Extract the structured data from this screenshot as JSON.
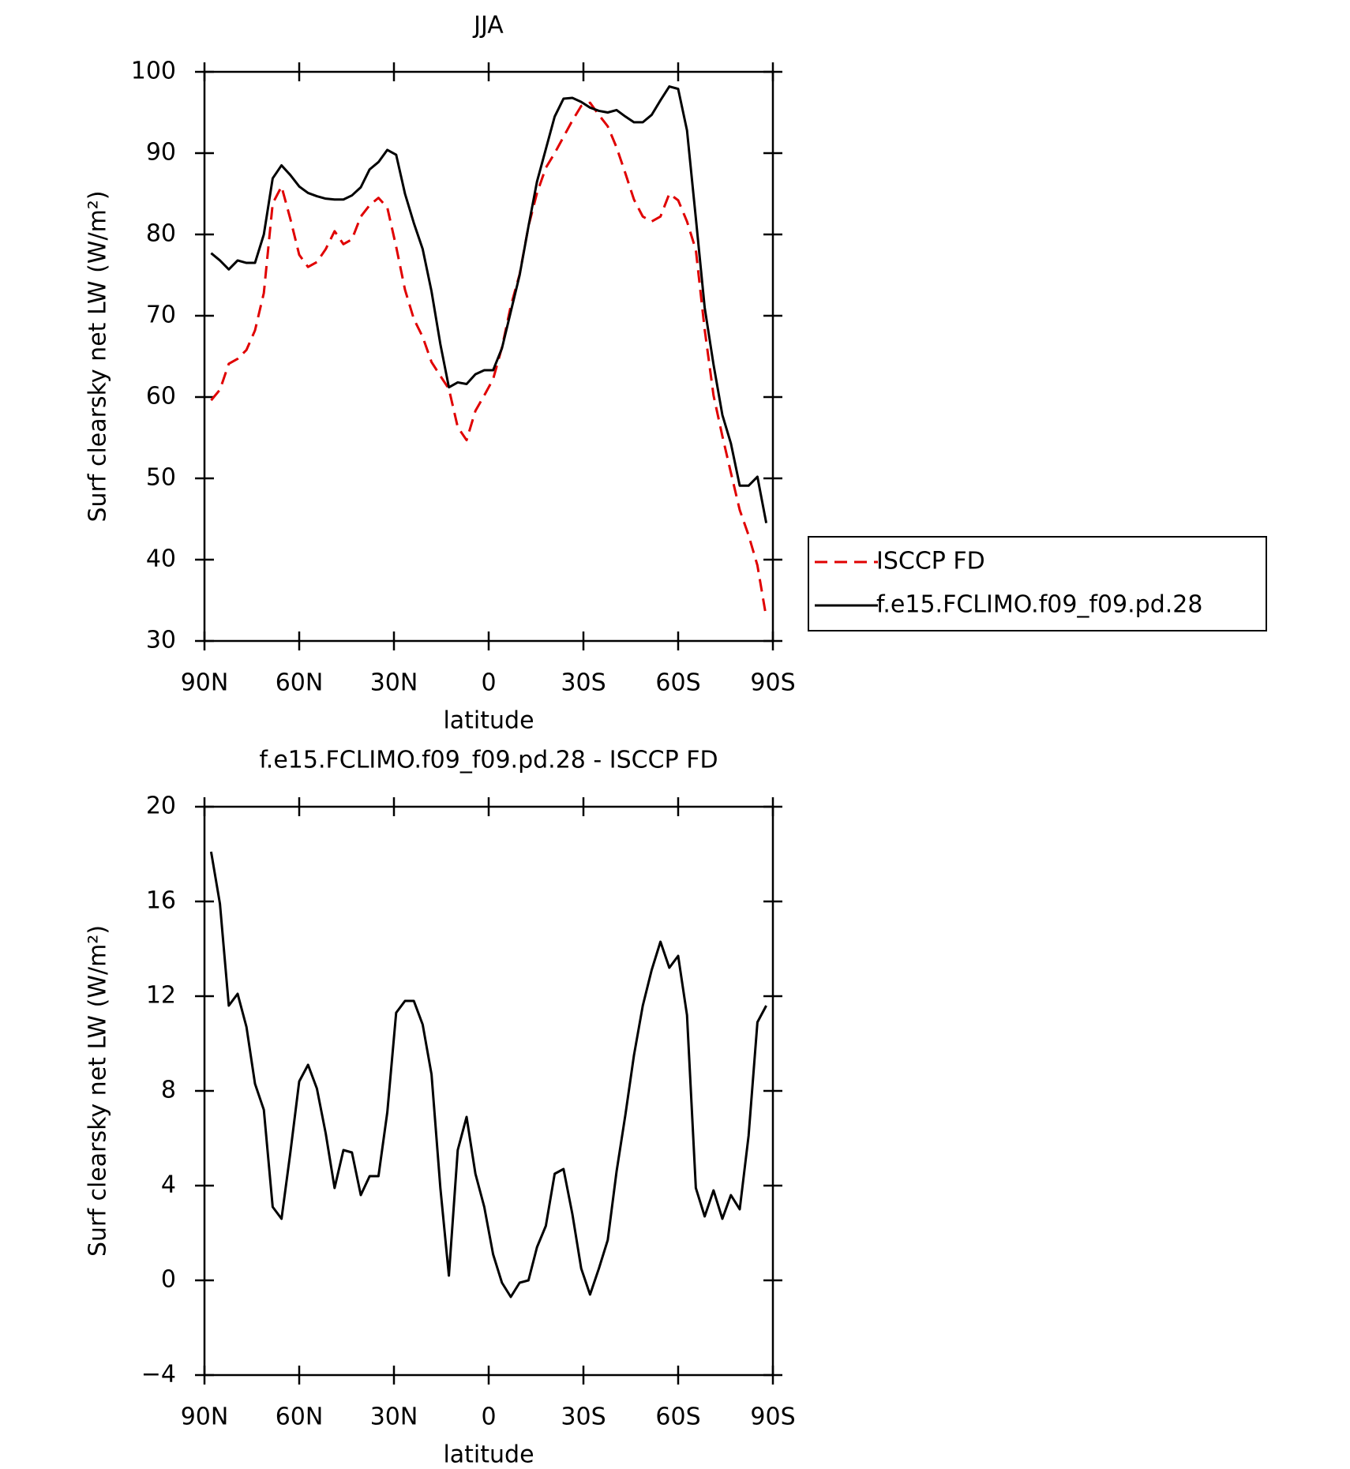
{
  "chart_data": [
    {
      "type": "line",
      "title": "JJA",
      "x_label": "latitude",
      "y_label": "Surf clearsky net LW (W/m²)",
      "x": [
        87.9,
        85.1,
        82.3,
        79.5,
        76.7,
        74.0,
        71.2,
        68.4,
        65.6,
        62.8,
        60.0,
        57.2,
        54.4,
        51.6,
        48.8,
        46.0,
        43.3,
        40.5,
        37.7,
        34.9,
        32.1,
        29.3,
        26.5,
        23.7,
        20.9,
        18.1,
        15.3,
        12.6,
        9.8,
        7.0,
        4.2,
        1.4,
        -1.4,
        -4.2,
        -7.0,
        -9.8,
        -12.6,
        -15.3,
        -18.1,
        -20.9,
        -23.7,
        -26.5,
        -29.3,
        -32.1,
        -34.9,
        -37.7,
        -40.5,
        -43.3,
        -46.0,
        -48.8,
        -51.6,
        -54.4,
        -57.2,
        -60.0,
        -62.8,
        -65.6,
        -68.4,
        -71.2,
        -74.0,
        -76.7,
        -79.5,
        -82.3,
        -85.1,
        -87.9
      ],
      "xlim": [
        90,
        -90
      ],
      "xticks": [
        {
          "value": 90,
          "label": "90N"
        },
        {
          "value": 60,
          "label": "60N"
        },
        {
          "value": 30,
          "label": "30N"
        },
        0,
        {
          "value": -30,
          "label": "30S"
        },
        {
          "value": -60,
          "label": "60S"
        },
        {
          "value": -90,
          "label": "90S"
        }
      ],
      "ylim": [
        30,
        100
      ],
      "yticks": [
        30,
        40,
        50,
        60,
        70,
        80,
        90,
        100
      ],
      "legend": "right",
      "series": [
        {
          "name": "ISCCP FD",
          "color": "#e00000",
          "line_style": "dashed",
          "values": [
            59.6,
            60.9,
            64.1,
            64.7,
            65.8,
            68.2,
            72.8,
            83.8,
            85.9,
            81.9,
            77.5,
            76.0,
            76.6,
            78.2,
            80.4,
            78.8,
            79.4,
            82.2,
            83.6,
            84.5,
            83.3,
            78.5,
            73.2,
            69.6,
            67.4,
            64.3,
            62.6,
            61.0,
            56.3,
            54.7,
            58.3,
            60.2,
            62.2,
            66.1,
            71.2,
            75.1,
            81.0,
            85.1,
            88.2,
            90.0,
            92.0,
            94.0,
            95.8,
            96.2,
            94.7,
            93.3,
            90.7,
            87.5,
            84.3,
            82.2,
            81.6,
            82.2,
            85.0,
            84.2,
            81.6,
            78.1,
            68.3,
            60.2,
            55.2,
            50.7,
            46.1,
            43.0,
            39.3,
            32.9
          ]
        },
        {
          "name": "f.e15.FCLIMO.f09_f09.pd.28",
          "color": "#000000",
          "line_style": "solid",
          "values": [
            77.7,
            76.8,
            75.7,
            76.8,
            76.5,
            76.5,
            80.0,
            86.9,
            88.5,
            87.3,
            85.9,
            85.1,
            84.7,
            84.4,
            84.3,
            84.3,
            84.8,
            85.8,
            88.0,
            88.9,
            90.4,
            89.8,
            85.0,
            81.4,
            78.2,
            73.0,
            66.5,
            61.2,
            61.8,
            61.6,
            62.8,
            63.3,
            63.3,
            66.0,
            70.5,
            75.0,
            81.0,
            86.5,
            90.5,
            94.5,
            96.7,
            96.8,
            96.3,
            95.6,
            95.2,
            95.0,
            95.3,
            94.5,
            93.8,
            93.8,
            94.7,
            96.5,
            98.2,
            97.9,
            92.8,
            82.0,
            71.0,
            64.0,
            57.8,
            54.3,
            49.1,
            49.1,
            50.2,
            44.5
          ]
        }
      ]
    },
    {
      "type": "line",
      "title": "f.e15.FCLIMO.f09_f09.pd.28 - ISCCP FD",
      "x_label": "latitude",
      "y_label": "Surf clearsky net LW (W/m²)",
      "x": [
        87.9,
        85.1,
        82.3,
        79.5,
        76.7,
        74.0,
        71.2,
        68.4,
        65.6,
        62.8,
        60.0,
        57.2,
        54.4,
        51.6,
        48.8,
        46.0,
        43.3,
        40.5,
        37.7,
        34.9,
        32.1,
        29.3,
        26.5,
        23.7,
        20.9,
        18.1,
        15.3,
        12.6,
        9.8,
        7.0,
        4.2,
        1.4,
        -1.4,
        -4.2,
        -7.0,
        -9.8,
        -12.6,
        -15.3,
        -18.1,
        -20.9,
        -23.7,
        -26.5,
        -29.3,
        -32.1,
        -34.9,
        -37.7,
        -40.5,
        -43.3,
        -46.0,
        -48.8,
        -51.6,
        -54.4,
        -57.2,
        -60.0,
        -62.8,
        -65.6,
        -68.4,
        -71.2,
        -74.0,
        -76.7,
        -79.5,
        -82.3,
        -85.1,
        -87.9
      ],
      "xlim": [
        90,
        -90
      ],
      "xticks": [
        {
          "value": 90,
          "label": "90N"
        },
        {
          "value": 60,
          "label": "60N"
        },
        {
          "value": 30,
          "label": "30N"
        },
        0,
        {
          "value": -30,
          "label": "30S"
        },
        {
          "value": -60,
          "label": "60S"
        },
        {
          "value": -90,
          "label": "90S"
        }
      ],
      "ylim": [
        -4,
        20
      ],
      "yticks": [
        {
          "value": -4,
          "label": "−4"
        },
        0,
        4,
        8,
        12,
        16,
        20
      ],
      "series": [
        {
          "color": "#000000",
          "line_style": "solid",
          "values": [
            18.1,
            15.9,
            11.6,
            12.1,
            10.7,
            8.3,
            7.2,
            3.1,
            2.6,
            5.4,
            8.4,
            9.1,
            8.1,
            6.2,
            3.9,
            5.5,
            5.4,
            3.6,
            4.4,
            4.4,
            7.1,
            11.3,
            11.8,
            11.8,
            10.8,
            8.7,
            3.9,
            0.2,
            5.5,
            6.9,
            4.5,
            3.1,
            1.1,
            -0.1,
            -0.7,
            -0.1,
            0.0,
            1.4,
            2.3,
            4.5,
            4.7,
            2.8,
            0.5,
            -0.6,
            0.5,
            1.7,
            4.6,
            7.0,
            9.5,
            11.6,
            13.1,
            14.3,
            13.2,
            13.7,
            11.2,
            3.9,
            2.7,
            3.8,
            2.6,
            3.6,
            3.0,
            6.1,
            10.9,
            11.6
          ]
        }
      ]
    }
  ]
}
